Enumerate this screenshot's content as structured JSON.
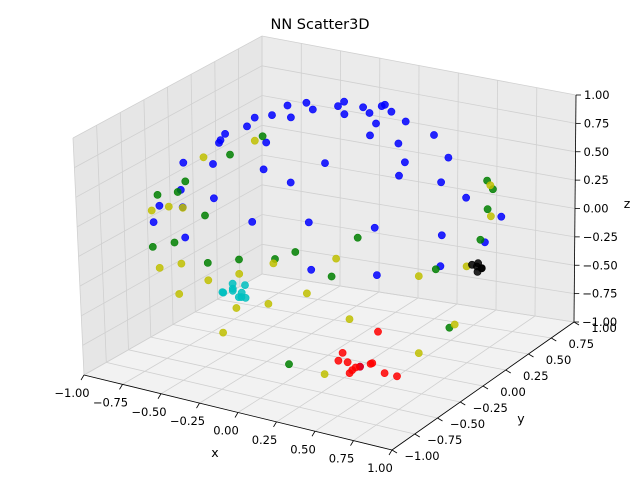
{
  "chart_data": {
    "type": "scatter",
    "projection": "3d",
    "title": "NN Scatter3D",
    "xlabel": "x",
    "ylabel": "y",
    "zlabel": "z",
    "xlim": [
      -1.0,
      1.0
    ],
    "ylim": [
      -1.0,
      1.0
    ],
    "zlim": [
      -1.0,
      1.0
    ],
    "x_ticks": [
      "−1.00",
      "−0.75",
      "−0.50",
      "−0.25",
      "0.00",
      "0.25",
      "0.50",
      "0.75",
      "1.00"
    ],
    "y_ticks": [
      "−1.00",
      "−0.75",
      "−0.50",
      "−0.25",
      "0.00",
      "0.25",
      "0.50",
      "0.75",
      "1.00"
    ],
    "z_ticks": [
      "−1.00",
      "−0.75",
      "−0.50",
      "−0.25",
      "0.00",
      "0.25",
      "0.50",
      "0.75",
      "1.00"
    ],
    "grid": true,
    "series": [
      {
        "color": "#0000ff",
        "points": [
          [
            -0.2,
            0.2,
            0.96
          ],
          [
            -0.1,
            0.3,
            0.97
          ],
          [
            0.0,
            0.2,
            0.98
          ],
          [
            0.1,
            0.3,
            0.97
          ],
          [
            0.2,
            0.2,
            0.96
          ],
          [
            -0.3,
            0.3,
            0.94
          ],
          [
            0.3,
            0.35,
            0.93
          ],
          [
            -0.15,
            0.45,
            0.92
          ],
          [
            0.15,
            0.45,
            0.92
          ],
          [
            0.0,
            0.4,
            0.94
          ],
          [
            -0.4,
            0.1,
            0.9
          ],
          [
            0.4,
            0.1,
            0.9
          ],
          [
            -0.25,
            0.05,
            0.95
          ],
          [
            0.25,
            0.05,
            0.95
          ],
          [
            0.05,
            0.55,
            0.9
          ],
          [
            -0.45,
            0.35,
            0.85
          ],
          [
            0.45,
            0.4,
            0.83
          ],
          [
            -0.5,
            0.0,
            0.82
          ],
          [
            0.5,
            0.0,
            0.82
          ],
          [
            0.0,
            0.6,
            0.85
          ],
          [
            -0.6,
            0.25,
            0.75
          ],
          [
            0.6,
            0.3,
            0.73
          ],
          [
            -0.55,
            -0.2,
            0.78
          ],
          [
            0.55,
            -0.15,
            0.8
          ],
          [
            -0.2,
            -0.3,
            0.92
          ],
          [
            0.2,
            -0.35,
            0.9
          ],
          [
            -0.7,
            0.1,
            0.65
          ],
          [
            0.7,
            0.05,
            0.68
          ],
          [
            -0.1,
            -0.5,
            0.82
          ],
          [
            0.1,
            -0.55,
            0.8
          ],
          [
            -0.8,
            0.2,
            0.5
          ],
          [
            0.8,
            0.15,
            0.52
          ],
          [
            -0.85,
            -0.1,
            0.45
          ],
          [
            0.85,
            -0.2,
            0.4
          ],
          [
            -0.9,
            0.3,
            0.25
          ],
          [
            0.3,
            -0.7,
            0.6
          ],
          [
            -0.3,
            -0.7,
            0.6
          ],
          [
            0.6,
            -0.5,
            0.55
          ],
          [
            -0.6,
            -0.55,
            0.5
          ],
          [
            0.9,
            -0.3,
            0.2
          ],
          [
            -0.95,
            -0.2,
            0.1
          ],
          [
            0.95,
            0.1,
            0.2
          ],
          [
            0.0,
            -0.8,
            0.55
          ],
          [
            0.4,
            -0.85,
            0.3
          ],
          [
            -0.4,
            -0.85,
            0.3
          ],
          [
            0.7,
            -0.65,
            0.25
          ],
          [
            -0.75,
            -0.6,
            0.2
          ],
          [
            0.85,
            0.45,
            0.2
          ],
          [
            -0.98,
            0.1,
            -0.05
          ],
          [
            0.5,
            -0.5,
            -0.7
          ]
        ]
      },
      {
        "color": "#008000",
        "points": [
          [
            -0.7,
            0.5,
            0.45
          ],
          [
            0.7,
            0.55,
            0.42
          ],
          [
            -0.85,
            0.4,
            0.3
          ],
          [
            0.85,
            0.3,
            0.35
          ],
          [
            -0.6,
            -0.5,
            0.55
          ],
          [
            0.55,
            -0.6,
            0.5
          ],
          [
            -0.9,
            -0.3,
            0.25
          ],
          [
            0.9,
            -0.35,
            0.2
          ],
          [
            -0.3,
            -0.8,
            0.5
          ],
          [
            0.3,
            -0.85,
            0.42
          ],
          [
            0.0,
            -0.95,
            0.3
          ],
          [
            -0.5,
            -0.8,
            0.2
          ],
          [
            0.5,
            -0.8,
            0.25
          ],
          [
            0.95,
            0.05,
            0.25
          ],
          [
            -0.98,
            0.05,
            0.1
          ],
          [
            0.65,
            0.7,
            0.25
          ],
          [
            -0.7,
            -0.7,
            0.05
          ],
          [
            0.2,
            -0.9,
            0.35
          ],
          [
            -0.2,
            -0.95,
            0.2
          ],
          [
            0.1,
            -0.6,
            -0.75
          ],
          [
            0.9,
            -0.2,
            -0.4
          ]
        ]
      },
      {
        "color": "#bfbf00",
        "points": [
          [
            -0.75,
            0.5,
            0.4
          ],
          [
            0.75,
            0.5,
            0.42
          ],
          [
            -0.9,
            0.2,
            0.35
          ],
          [
            0.9,
            0.25,
            0.33
          ],
          [
            -0.5,
            -0.7,
            0.45
          ],
          [
            0.5,
            -0.75,
            0.38
          ],
          [
            -0.85,
            -0.45,
            0.2
          ],
          [
            0.85,
            -0.45,
            0.18
          ],
          [
            -0.95,
            -0.1,
            0.05
          ],
          [
            0.95,
            -0.1,
            0.1
          ],
          [
            -0.4,
            -0.9,
            0.1
          ],
          [
            0.4,
            -0.9,
            0.12
          ],
          [
            -0.2,
            -0.95,
            0.05
          ],
          [
            0.2,
            -0.98,
            0.0
          ],
          [
            0.0,
            -0.99,
            -0.1
          ],
          [
            -0.6,
            -0.8,
            -0.05
          ],
          [
            0.6,
            -0.78,
            -0.1
          ],
          [
            -0.15,
            -0.7,
            0.0
          ],
          [
            0.1,
            -0.75,
            0.2
          ],
          [
            0.3,
            -0.55,
            -0.8
          ],
          [
            -0.5,
            -0.3,
            -0.8
          ],
          [
            0.85,
            -0.45,
            -0.5
          ],
          [
            0.7,
            0.2,
            -0.65
          ],
          [
            -0.45,
            -0.85,
            -0.2
          ]
        ]
      },
      {
        "color": "#00bfbf",
        "points": [
          [
            -0.55,
            -0.1,
            -0.55
          ],
          [
            -0.5,
            -0.12,
            -0.58
          ],
          [
            -0.58,
            -0.05,
            -0.52
          ],
          [
            -0.52,
            -0.15,
            -0.5
          ],
          [
            -0.48,
            -0.08,
            -0.6
          ],
          [
            -0.6,
            -0.12,
            -0.57
          ],
          [
            -0.54,
            -0.02,
            -0.6
          ],
          [
            -0.46,
            -0.16,
            -0.55
          ],
          [
            -0.57,
            -0.18,
            -0.53
          ],
          [
            -0.5,
            -0.05,
            -0.51
          ]
        ]
      },
      {
        "color": "#ff0000",
        "points": [
          [
            0.45,
            -0.55,
            -0.65
          ],
          [
            0.5,
            -0.5,
            -0.7
          ],
          [
            0.42,
            -0.6,
            -0.62
          ],
          [
            0.55,
            -0.45,
            -0.68
          ],
          [
            0.48,
            -0.58,
            -0.72
          ],
          [
            0.4,
            -0.52,
            -0.6
          ],
          [
            0.52,
            -0.62,
            -0.66
          ],
          [
            0.46,
            -0.48,
            -0.73
          ],
          [
            0.58,
            -0.52,
            -0.64
          ],
          [
            0.6,
            -0.4,
            -0.78
          ],
          [
            0.65,
            -0.35,
            -0.82
          ],
          [
            0.5,
            -0.3,
            -0.5
          ]
        ]
      },
      {
        "color": "#000000",
        "points": [
          [
            0.55,
            0.7,
            -0.45
          ],
          [
            0.57,
            0.72,
            -0.47
          ],
          [
            0.53,
            0.68,
            -0.43
          ],
          [
            0.56,
            0.69,
            -0.49
          ],
          [
            0.54,
            0.73,
            -0.44
          ],
          [
            0.58,
            0.7,
            -0.46
          ]
        ]
      }
    ]
  }
}
